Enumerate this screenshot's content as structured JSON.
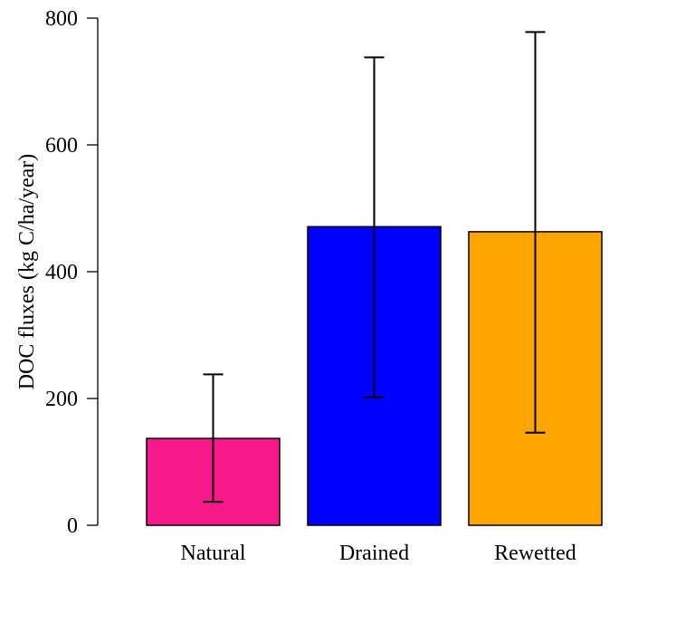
{
  "chart_data": {
    "type": "bar",
    "title": "",
    "xlabel": "",
    "ylabel": "DOC fluxes (kg C/ha/year)",
    "ylim": [
      0,
      800
    ],
    "yticks": [
      0,
      200,
      400,
      600,
      800
    ],
    "grid": false,
    "categories": [
      "Natural",
      "Drained",
      "Rewetted"
    ],
    "values": [
      137,
      471,
      463
    ],
    "error_low": [
      37,
      202,
      146
    ],
    "error_high": [
      238,
      738,
      778
    ],
    "colors": [
      "#f7188c",
      "#0000ff",
      "#ffa500"
    ]
  }
}
